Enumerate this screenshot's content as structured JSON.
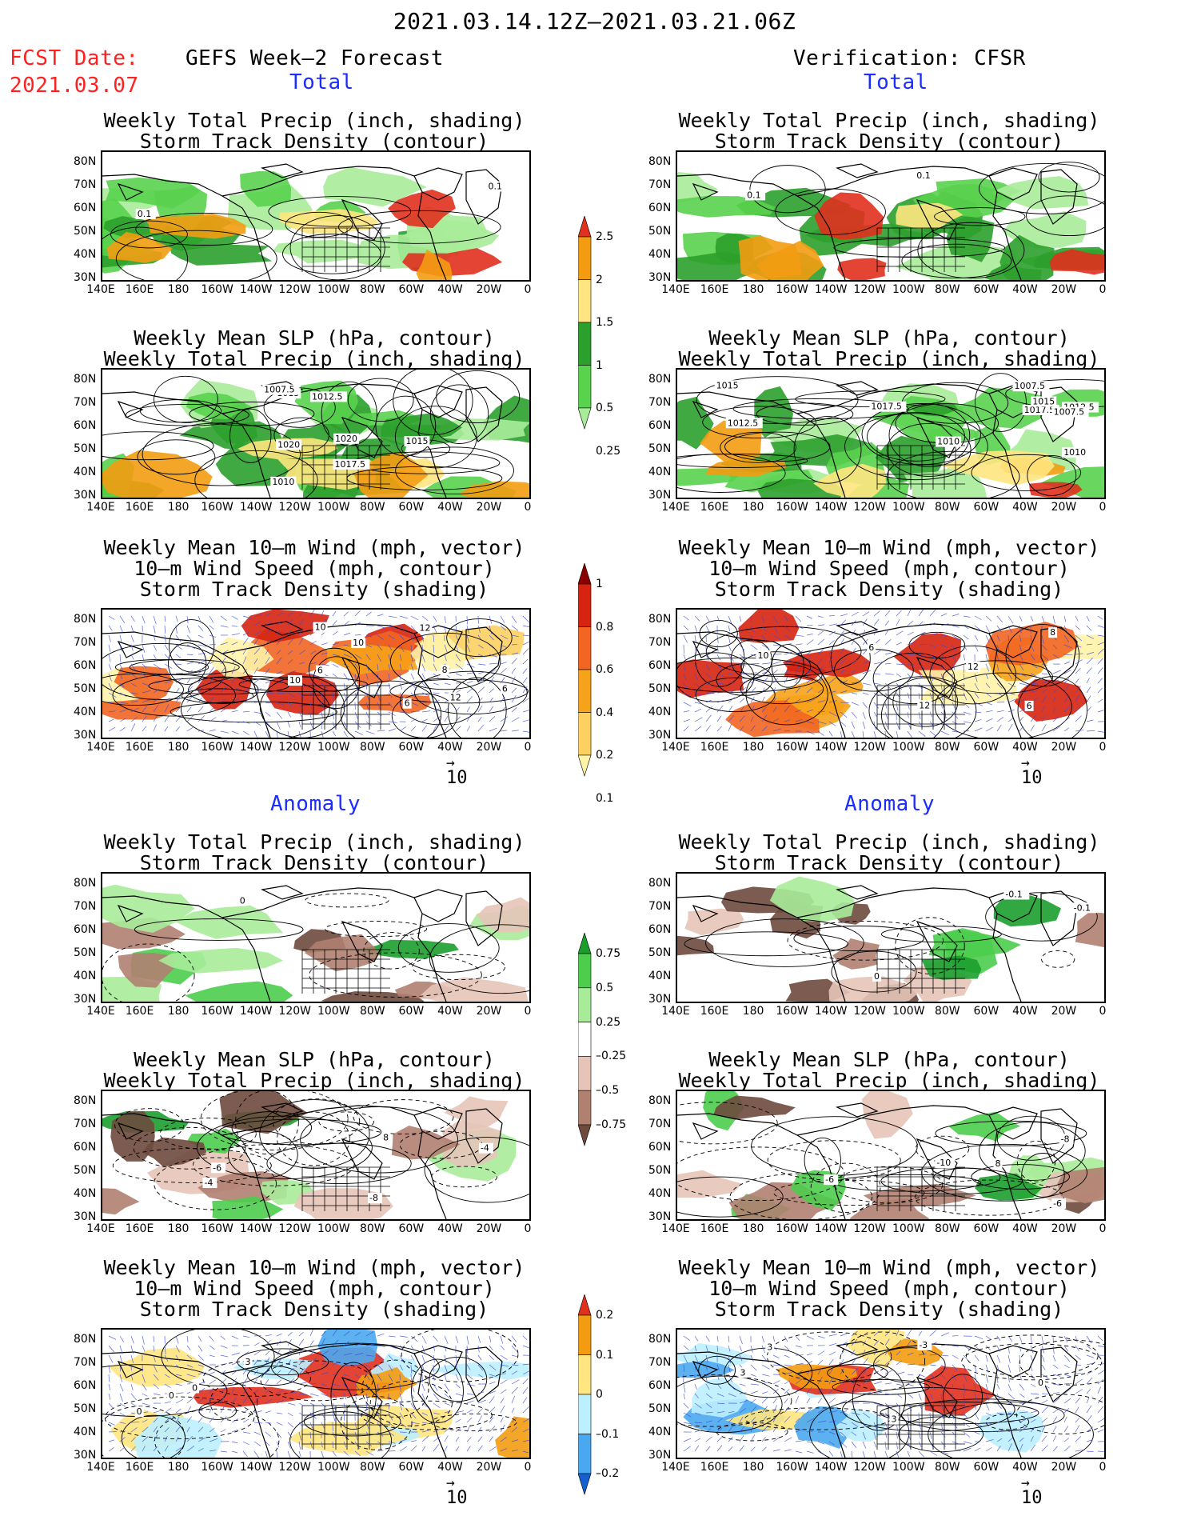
{
  "header": {
    "period": "2021.03.14.12Z–2021.03.21.06Z",
    "fcst_label": "FCST Date:",
    "fcst_date": "2021.03.07",
    "left_title": "GEFS Week–2 Forecast",
    "right_title": "Verification: CFSR",
    "total_label": "Total",
    "anomaly_label": "Anomaly"
  },
  "panel_titles": {
    "precip_storm": [
      "Weekly Total Precip (inch, shading)",
      "Storm Track Density (contour)"
    ],
    "slp_precip": [
      "Weekly Mean SLP (hPa, contour)",
      "Weekly Total Precip (inch, shading)"
    ],
    "wind_storm": [
      "Weekly Mean 10–m Wind (mph, vector)",
      "10–m Wind Speed (mph, contour)",
      "Storm Track Density (shading)"
    ]
  },
  "axes": {
    "lat_labels": [
      "80N",
      "70N",
      "60N",
      "50N",
      "40N",
      "30N"
    ],
    "lon_labels": [
      "140E",
      "160E",
      "180",
      "160W",
      "140W",
      "120W",
      "100W",
      "80W",
      "60W",
      "40W",
      "20W",
      "0"
    ]
  },
  "vector_ref": "10",
  "colorbars": {
    "total_precip": {
      "labels": [
        "2.5",
        "2",
        "1.5",
        "1",
        "0.5",
        "0.25"
      ],
      "colors": [
        "#e0301e",
        "#f39c12",
        "#ffe680",
        "#2ca02c",
        "#59d24e",
        "#a8ec9a"
      ]
    },
    "storm_density": {
      "labels": [
        "1",
        "0.8",
        "0.6",
        "0.4",
        "0.2",
        "0.1"
      ],
      "colors": [
        "#8b0000",
        "#d62411",
        "#f26522",
        "#f7a21b",
        "#fdd060",
        "#fff3a8"
      ]
    },
    "precip_anomaly": {
      "labels": [
        "0.75",
        "0.5",
        "0.25",
        "–0.25",
        "–0.5",
        "–0.75"
      ],
      "colors": [
        "#1b9e2e",
        "#4ccd4c",
        "#a8ec9a",
        "#ffffff",
        "#e6c4b8",
        "#b08070",
        "#6e4a3e"
      ]
    },
    "storm_anomaly": {
      "labels": [
        "0.2",
        "0.1",
        "0",
        "–0.1",
        "–0.2"
      ],
      "colors": [
        "#e0301e",
        "#f39c12",
        "#ffe680",
        "#bdf0ff",
        "#4aa8f0",
        "#1560d0"
      ]
    }
  },
  "contour_labels": {
    "fc_total_precip": [
      "0.1",
      "0.1"
    ],
    "fc_total_slp": [
      "1017.5",
      "1012.5",
      "1015",
      "1007.5",
      "1010",
      "1015",
      "1020",
      "1020"
    ],
    "fc_total_wind": [
      "6",
      "10",
      "12",
      "6",
      "10",
      "10",
      "8",
      "12",
      "6"
    ],
    "ver_total_precip": [
      "0.1",
      "0.1"
    ],
    "ver_total_slp": [
      "1010",
      "1015",
      "1012.5",
      "1010",
      "1017.5",
      "1007.5",
      "1017.5",
      "1007.5",
      "1012.5",
      "1015"
    ],
    "ver_total_wind": [
      "10",
      "6",
      "12",
      "12",
      "8",
      "6"
    ],
    "fc_anom_precip": [
      "0"
    ],
    "fc_anom_slp": [
      "-4",
      "-6",
      "-8",
      "-4",
      "8"
    ],
    "fc_anom_wind": [
      "0",
      "3",
      "0",
      "0"
    ],
    "ver_anom_precip": [
      "-0.1",
      "-0.1",
      "0"
    ],
    "ver_anom_slp": [
      "-6",
      "-8",
      "-10",
      "-6",
      "8"
    ],
    "ver_anom_wind": [
      "3",
      "3",
      "0",
      "3",
      "-3"
    ]
  }
}
